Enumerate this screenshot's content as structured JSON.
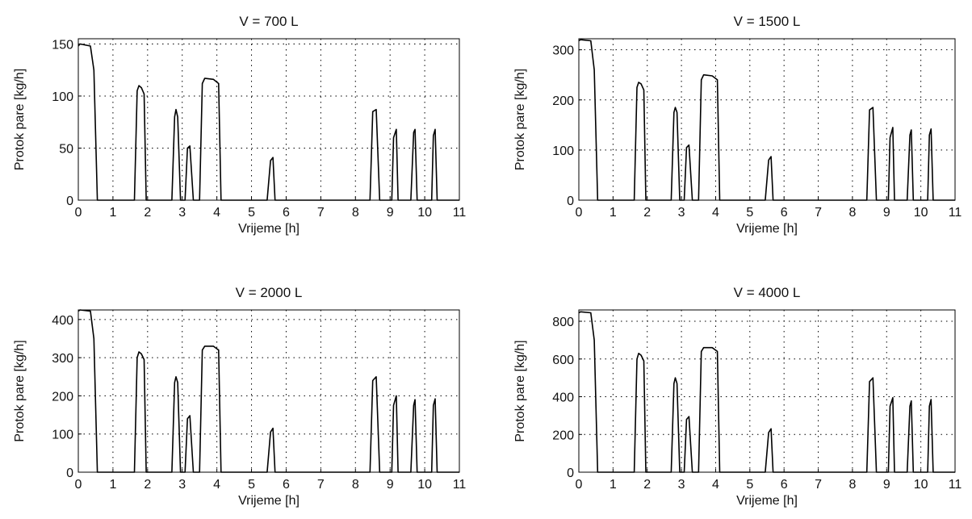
{
  "chart_data": [
    {
      "type": "line",
      "title": "V = 700 L",
      "xlabel": "Vrijeme [h]",
      "ylabel": "Protok pare [kg/h]",
      "xlim": [
        0,
        11
      ],
      "ylim": [
        0,
        155
      ],
      "xticks": [
        0,
        1,
        2,
        3,
        4,
        5,
        6,
        7,
        8,
        9,
        10,
        11
      ],
      "yticks": [
        0,
        50,
        100,
        150
      ],
      "grid": true,
      "series": [
        {
          "x": [
            0,
            0.05,
            0.35,
            0.45,
            0.55,
            1.62,
            1.7,
            1.75,
            1.82,
            1.9,
            1.96,
            2.7,
            2.78,
            2.82,
            2.87,
            2.95,
            3.08,
            3.15,
            3.22,
            3.32,
            3.5,
            3.58,
            3.65,
            3.9,
            4.05,
            4.12,
            5.45,
            5.55,
            5.62,
            5.68,
            8.42,
            8.5,
            8.6,
            8.7,
            9.05,
            9.1,
            9.18,
            9.23,
            9.6,
            9.68,
            9.72,
            9.78,
            10.2,
            10.25,
            10.3,
            10.36,
            11
          ],
          "values": [
            148,
            150,
            148,
            125,
            0,
            0,
            105,
            110,
            108,
            102,
            0,
            0,
            80,
            87,
            80,
            0,
            0,
            50,
            52,
            0,
            0,
            112,
            117,
            116,
            112,
            0,
            0,
            38,
            41,
            0,
            0,
            85,
            87,
            0,
            0,
            60,
            68,
            0,
            0,
            65,
            68,
            0,
            0,
            62,
            68,
            0,
            0
          ]
        }
      ]
    },
    {
      "type": "line",
      "title": "V = 1500 L",
      "xlabel": "Vrijeme [h]",
      "ylabel": "Protok pare [kg/h]",
      "xlim": [
        0,
        11
      ],
      "ylim": [
        0,
        322
      ],
      "xticks": [
        0,
        1,
        2,
        3,
        4,
        5,
        6,
        7,
        8,
        9,
        10,
        11
      ],
      "yticks": [
        0,
        100,
        200,
        300
      ],
      "grid": true,
      "series": [
        {
          "x": [
            0,
            0.05,
            0.35,
            0.45,
            0.55,
            1.62,
            1.7,
            1.75,
            1.82,
            1.9,
            1.96,
            2.7,
            2.78,
            2.82,
            2.87,
            2.95,
            3.08,
            3.15,
            3.22,
            3.32,
            3.5,
            3.58,
            3.65,
            3.9,
            4.05,
            4.12,
            5.45,
            5.55,
            5.62,
            5.68,
            8.42,
            8.5,
            8.6,
            8.7,
            9.05,
            9.1,
            9.18,
            9.23,
            9.6,
            9.68,
            9.72,
            9.78,
            10.2,
            10.25,
            10.3,
            10.36,
            11
          ],
          "values": [
            318,
            320,
            318,
            260,
            0,
            0,
            225,
            235,
            232,
            220,
            0,
            0,
            175,
            185,
            175,
            0,
            0,
            105,
            110,
            0,
            0,
            240,
            250,
            248,
            240,
            0,
            0,
            80,
            87,
            0,
            0,
            180,
            185,
            0,
            0,
            125,
            145,
            0,
            0,
            130,
            140,
            0,
            0,
            130,
            142,
            0,
            0
          ]
        }
      ]
    },
    {
      "type": "line",
      "title": "V = 2000 L",
      "xlabel": "Vrijeme [h]",
      "ylabel": "Protok pare [kg/h]",
      "xlim": [
        0,
        11
      ],
      "ylim": [
        0,
        425
      ],
      "xticks": [
        0,
        1,
        2,
        3,
        4,
        5,
        6,
        7,
        8,
        9,
        10,
        11
      ],
      "yticks": [
        0,
        100,
        200,
        300,
        400
      ],
      "grid": true,
      "series": [
        {
          "x": [
            0,
            0.05,
            0.35,
            0.45,
            0.55,
            1.62,
            1.7,
            1.75,
            1.82,
            1.9,
            1.96,
            2.7,
            2.78,
            2.82,
            2.87,
            2.95,
            3.08,
            3.15,
            3.22,
            3.32,
            3.5,
            3.58,
            3.65,
            3.9,
            4.05,
            4.12,
            5.45,
            5.55,
            5.62,
            5.68,
            8.42,
            8.5,
            8.6,
            8.7,
            9.05,
            9.1,
            9.18,
            9.23,
            9.6,
            9.68,
            9.72,
            9.78,
            10.2,
            10.25,
            10.3,
            10.36,
            11
          ],
          "values": [
            422,
            425,
            422,
            350,
            0,
            0,
            300,
            315,
            310,
            295,
            0,
            0,
            235,
            250,
            235,
            0,
            0,
            140,
            148,
            0,
            0,
            320,
            330,
            330,
            320,
            0,
            0,
            105,
            115,
            0,
            0,
            240,
            250,
            0,
            0,
            175,
            200,
            0,
            0,
            175,
            190,
            0,
            0,
            175,
            192,
            0,
            0
          ]
        }
      ]
    },
    {
      "type": "line",
      "title": "V = 4000  L",
      "xlabel": "Vrijeme [h]",
      "ylabel": "Protok pare [kg/h]",
      "xlim": [
        0,
        11
      ],
      "ylim": [
        0,
        860
      ],
      "xticks": [
        0,
        1,
        2,
        3,
        4,
        5,
        6,
        7,
        8,
        9,
        10,
        11
      ],
      "yticks": [
        0,
        200,
        400,
        600,
        800
      ],
      "grid": true,
      "series": [
        {
          "x": [
            0,
            0.05,
            0.35,
            0.45,
            0.55,
            1.62,
            1.7,
            1.75,
            1.82,
            1.9,
            1.96,
            2.7,
            2.78,
            2.82,
            2.87,
            2.95,
            3.08,
            3.15,
            3.22,
            3.32,
            3.5,
            3.58,
            3.65,
            3.9,
            4.05,
            4.12,
            5.45,
            5.55,
            5.62,
            5.68,
            8.42,
            8.5,
            8.6,
            8.7,
            9.05,
            9.1,
            9.18,
            9.23,
            9.6,
            9.68,
            9.72,
            9.78,
            10.2,
            10.25,
            10.3,
            10.36,
            11
          ],
          "values": [
            845,
            850,
            845,
            700,
            0,
            0,
            600,
            630,
            620,
            590,
            0,
            0,
            470,
            500,
            470,
            0,
            0,
            280,
            295,
            0,
            0,
            640,
            660,
            660,
            640,
            0,
            0,
            210,
            230,
            0,
            0,
            480,
            500,
            0,
            0,
            350,
            395,
            0,
            0,
            350,
            378,
            0,
            0,
            350,
            385,
            0,
            0
          ]
        }
      ]
    }
  ]
}
